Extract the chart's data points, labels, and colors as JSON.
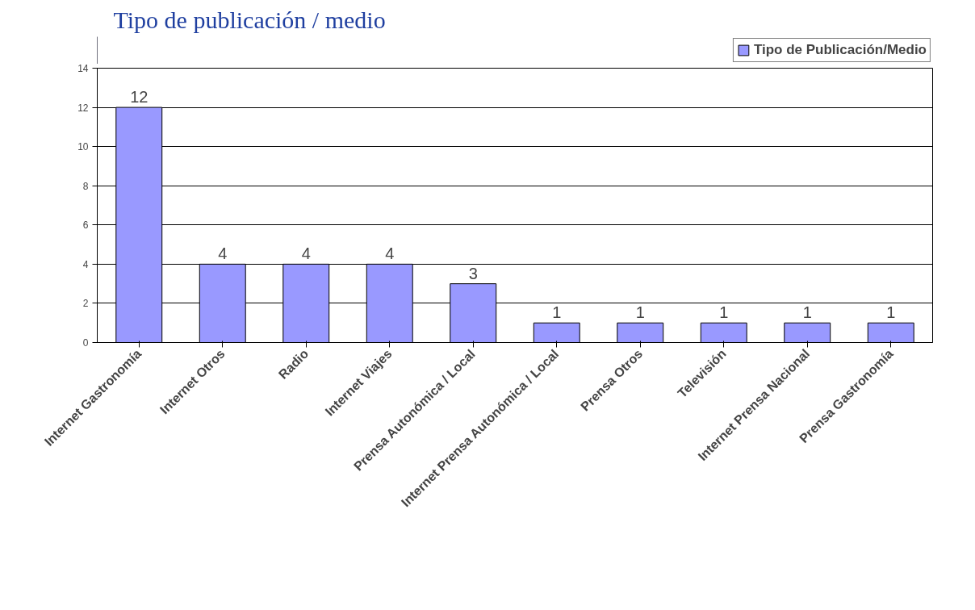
{
  "chart_data": {
    "type": "bar",
    "title": "Tipo de publicación / medio",
    "categories": [
      "Internet Gastronomía",
      "Internet Otros",
      "Radio",
      "Internet Viajes",
      "Prensa Autonómica / Local",
      "Internet Prensa Autonómica / Local",
      "Prensa Otros",
      "Televisión",
      "Internet Prensa Nacional",
      "Prensa Gastronomía"
    ],
    "series": [
      {
        "name": "Tipo de Publicación/Medio",
        "color": "#9999ff",
        "values": [
          12,
          4,
          4,
          4,
          3,
          1,
          1,
          1,
          1,
          1
        ]
      }
    ],
    "ylim": [
      0,
      14
    ],
    "yticks": [
      0,
      2,
      4,
      6,
      8,
      10,
      12,
      14
    ],
    "grid": "y",
    "data_labels": true,
    "legend": "top right"
  }
}
